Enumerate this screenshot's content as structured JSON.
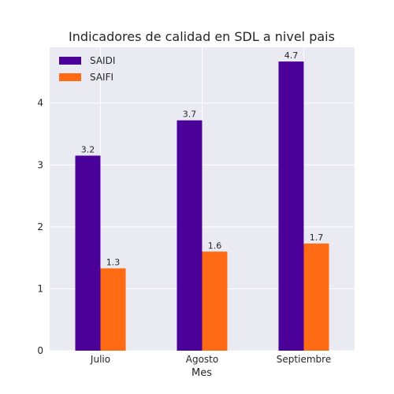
{
  "chart_data": {
    "type": "bar",
    "title": "Indicadores de calidad en SDL a nivel pais",
    "xlabel": "Mes",
    "ylabel": "",
    "categories": [
      "Julio",
      "Agosto",
      "Septiembre"
    ],
    "series": [
      {
        "name": "SAIDI",
        "values": [
          3.15,
          3.72,
          4.67
        ],
        "labels": [
          "3.2",
          "3.7",
          "4.7"
        ],
        "color": "#4b0099"
      },
      {
        "name": "SAIFI",
        "values": [
          1.33,
          1.6,
          1.73
        ],
        "labels": [
          "1.3",
          "1.6",
          "1.7"
        ],
        "color": "#ff6a14"
      }
    ],
    "ylim": [
      0,
      4.9
    ],
    "yticks": [
      0,
      1,
      2,
      3,
      4
    ],
    "grid": true,
    "legend_position": "top-left",
    "background_color": "#eaeaf2",
    "grid_color": "#ffffff"
  }
}
